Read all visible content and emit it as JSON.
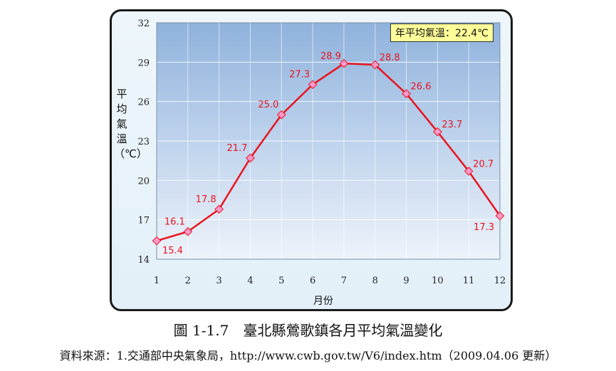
{
  "chart_data": {
    "type": "line",
    "categories": [
      "1",
      "2",
      "3",
      "4",
      "5",
      "6",
      "7",
      "8",
      "9",
      "10",
      "11",
      "12"
    ],
    "series": [
      {
        "values": [
          15.4,
          16.1,
          17.8,
          21.7,
          25.0,
          27.3,
          28.9,
          28.8,
          26.6,
          23.7,
          20.7,
          17.3
        ]
      }
    ],
    "data_labels": [
      "15.4",
      "16.1",
      "17.8",
      "21.7",
      "25.0",
      "27.3",
      "28.9",
      "28.8",
      "26.6",
      "23.7",
      "20.7",
      "17.3"
    ],
    "yticks": [
      "14",
      "17",
      "20",
      "23",
      "26",
      "29",
      "32"
    ],
    "ylim": [
      14,
      32
    ],
    "xlabel": "月份",
    "ylabel": "平均氣溫（℃）",
    "annotation": "年平均氣溫：22.4℃",
    "grid": true,
    "line_color": "#e8141e",
    "marker_color": "#ff99cc"
  },
  "caption": "圖 1-1.7　臺北縣鶯歌鎮各月平均氣溫變化",
  "source": "資料來源：1.交通部中央氣象局，http://www.cwb.gov.tw/V6/index.htm（2009.04.06 更新）"
}
